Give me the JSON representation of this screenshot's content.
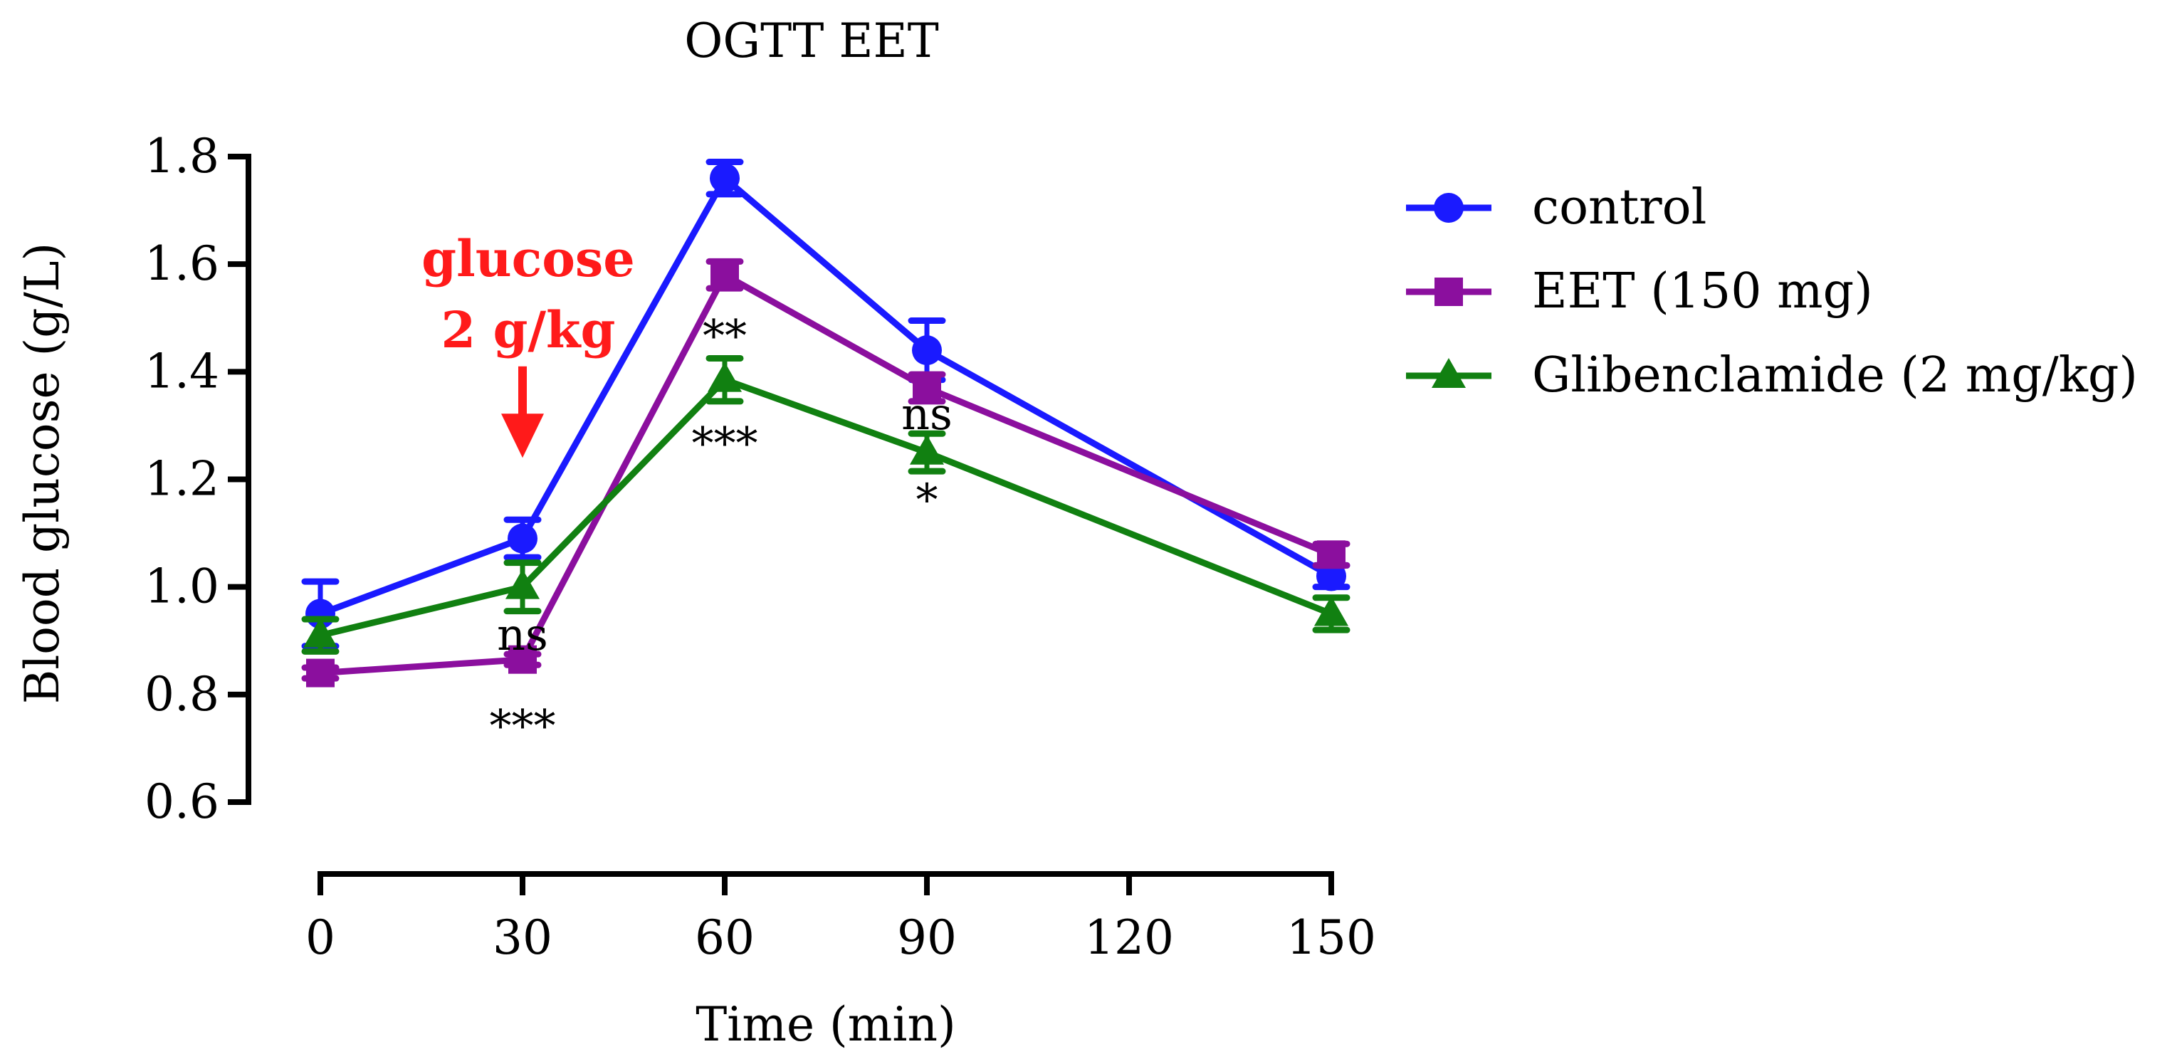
{
  "chart_data": {
    "type": "line",
    "title": "OGTT EET",
    "xlabel": "Time (min)",
    "ylabel": "Blood glucose (g/L)",
    "xlim": [
      0,
      150
    ],
    "ylim": [
      0.6,
      1.8
    ],
    "xticks": [
      0,
      30,
      60,
      90,
      120,
      150
    ],
    "xtick_labels": [
      "0",
      "30",
      "60",
      "90",
      "120",
      "150"
    ],
    "yticks": [
      0.6,
      0.8,
      1.0,
      1.2,
      1.4,
      1.6,
      1.8
    ],
    "ytick_labels": [
      "0.6",
      "0.8",
      "1.0",
      "1.2",
      "1.4",
      "1.6",
      "1.8"
    ],
    "legend_position": "right",
    "series": [
      {
        "name": "control",
        "color": "#1a1aff",
        "marker": "circle",
        "x": [
          0,
          30,
          60,
          90,
          150
        ],
        "y": [
          0.95,
          1.09,
          1.76,
          1.44,
          1.02
        ],
        "err": [
          0.06,
          0.035,
          0.03,
          0.055,
          0.02
        ]
      },
      {
        "name": "EET (150 mg)",
        "color": "#8b0f9e",
        "marker": "square",
        "x": [
          0,
          30,
          60,
          90,
          150
        ],
        "y": [
          0.84,
          0.865,
          1.58,
          1.37,
          1.06
        ],
        "err": [
          0.01,
          0.01,
          0.025,
          0.025,
          0.02
        ]
      },
      {
        "name": "Glibenclamide (2 mg/kg)",
        "color": "#118011",
        "marker": "triangle",
        "x": [
          0,
          30,
          60,
          90,
          150
        ],
        "y": [
          0.91,
          1.0,
          1.385,
          1.25,
          0.95
        ],
        "err": [
          0.03,
          0.045,
          0.04,
          0.035,
          0.03
        ]
      }
    ],
    "significance": [
      {
        "x": 30,
        "y": 0.745,
        "text": "***"
      },
      {
        "x": 30,
        "y": 0.915,
        "text": "ns"
      },
      {
        "x": 60,
        "y": 1.47,
        "text": "**"
      },
      {
        "x": 60,
        "y": 1.27,
        "text": "***"
      },
      {
        "x": 90,
        "y": 1.325,
        "text": "ns"
      },
      {
        "x": 90,
        "y": 1.165,
        "text": "*"
      }
    ],
    "annotation": {
      "lines": [
        "glucose",
        "2 g/kg"
      ],
      "x": 30,
      "color": "#ff1a1a",
      "arrow_from_y": 1.41,
      "arrow_to_y": 1.24
    }
  }
}
